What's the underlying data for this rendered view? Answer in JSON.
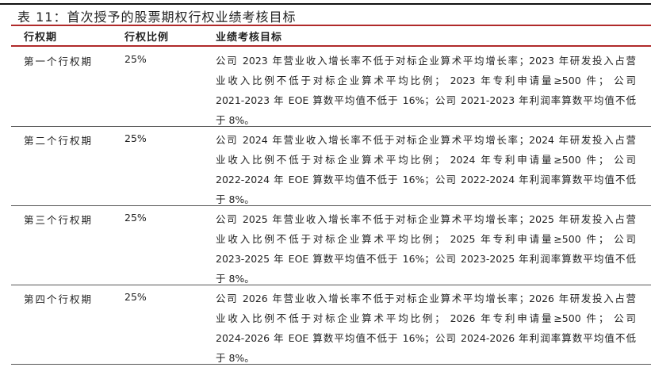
{
  "title": "表 11：首次授予的股票期权行权业绩考核目标",
  "colors": {
    "header_rule": "#b02a2a",
    "top_rule": "#111111",
    "row_rule": "#555555"
  },
  "headers": [
    "行权期",
    "行权比例",
    "业绩考核目标"
  ],
  "rows": [
    {
      "period": "第一个行权期",
      "ratio": "25%",
      "target_lines": [
        "公司 2023 年营业收入增长率不低于对标企业算术平均增长率；2023 年研发投入占营",
        "业收入比例不低于对标企业算术平均比例； 2023 年专利申请量≥500 件； 公司",
        "2021-2023 年 EOE 算数平均值不低于 16%；公司 2021-2023 年利润率算数平均值不低",
        "于 8%。"
      ]
    },
    {
      "period": "第二个行权期",
      "ratio": "25%",
      "target_lines": [
        "公司 2024 年营业收入增长率不低于对标企业算术平均增长率；2024 年研发投入占营",
        "业收入比例不低于对标企业算术平均比例； 2024 年专利申请量≥500 件； 公司",
        "2022-2024 年 EOE 算数平均值不低于 16%；公司 2022-2024 年利润率算数平均值不低",
        "于 8%。"
      ]
    },
    {
      "period": "第三个行权期",
      "ratio": "25%",
      "target_lines": [
        "公司 2025 年营业收入增长率不低于对标企业算术平均增长率；2025 年研发投入占营",
        "业收入比例不低于对标企业算术平均比例； 2025 年专利申请量≥500 件； 公司",
        "2023-2025 年 EOE 算数平均值不低于 16%；公司 2023-2025 年利润率算数平均值不低",
        "于 8%。"
      ]
    },
    {
      "period": "第四个行权期",
      "ratio": "25%",
      "target_lines": [
        "公司 2026 年营业收入增长率不低于对标企业算术平均增长率；2026 年研发投入占营",
        "业收入比例不低于对标企业算术平均比例； 2026 年专利申请量≥500 件； 公司",
        "2024-2026 年 EOE 算数平均值不低于 16%；公司 2024-2026 年利润率算数平均值不低",
        "于 8%。"
      ]
    }
  ]
}
